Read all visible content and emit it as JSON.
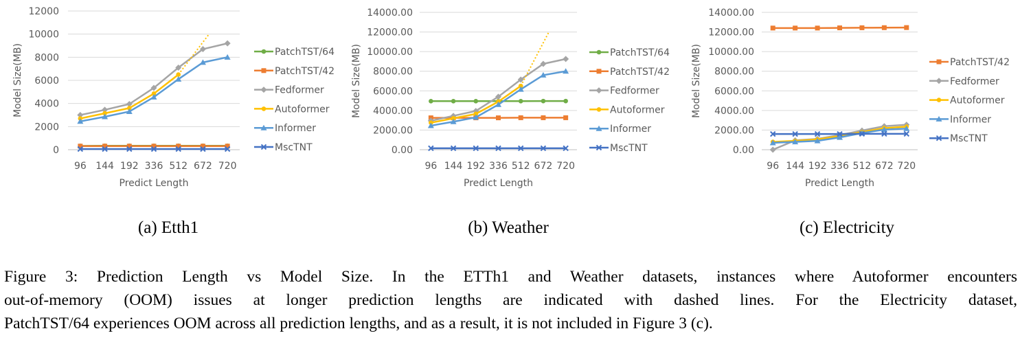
{
  "chart_data": [
    {
      "type": "line",
      "subcaption": "(a) Etth1",
      "xlabel": "Predict Length",
      "ylabel": "Model Size(MB)",
      "categories": [
        "96",
        "144",
        "192",
        "336",
        "512",
        "672",
        "720"
      ],
      "ylim": [
        0,
        12000
      ],
      "yticks": [
        "0",
        "2000",
        "4000",
        "6000",
        "8000",
        "10000",
        "12000"
      ],
      "grid": true,
      "legend": "right",
      "series": [
        {
          "name": "PatchTST/64",
          "color": "#70ad47",
          "marker": "circle",
          "values": [
            330,
            340,
            340,
            340,
            340,
            340,
            340
          ]
        },
        {
          "name": "PatchTST/42",
          "color": "#ed7d31",
          "marker": "square",
          "values": [
            310,
            310,
            310,
            310,
            310,
            310,
            310
          ]
        },
        {
          "name": "Fedformer",
          "color": "#a5a5a5",
          "marker": "diamond",
          "values": [
            3000,
            3450,
            3950,
            5350,
            7100,
            8700,
            9200
          ]
        },
        {
          "name": "Autoformer",
          "color": "#ffc000",
          "marker": "circle",
          "values": [
            2700,
            3150,
            3600,
            4850,
            6500,
            null,
            null
          ],
          "oom_dashed": [
            [
              4,
              6500
            ],
            [
              5.25,
              10000
            ]
          ]
        },
        {
          "name": "Informer",
          "color": "#5b9bd5",
          "marker": "triangle",
          "values": [
            2450,
            2850,
            3300,
            4550,
            6100,
            7550,
            8000
          ]
        },
        {
          "name": "MscTNT",
          "color": "#4472c4",
          "marker": "x",
          "values": [
            60,
            60,
            60,
            60,
            60,
            60,
            60
          ]
        }
      ]
    },
    {
      "type": "line",
      "subcaption": "(b) Weather",
      "xlabel": "Predict Length",
      "ylabel": "Model Size(MB)",
      "categories": [
        "96",
        "144",
        "192",
        "336",
        "512",
        "672",
        "720"
      ],
      "ylim": [
        0,
        14000
      ],
      "yticks": [
        "0.00",
        "2000.00",
        "4000.00",
        "6000.00",
        "8000.00",
        "10000.00",
        "12000.00",
        "14000.00"
      ],
      "grid": true,
      "legend": "right",
      "series": [
        {
          "name": "PatchTST/64",
          "color": "#70ad47",
          "marker": "circle",
          "values": [
            4950,
            4950,
            4950,
            4950,
            4950,
            4960,
            4960
          ]
        },
        {
          "name": "PatchTST/42",
          "color": "#ed7d31",
          "marker": "square",
          "values": [
            3250,
            3250,
            3250,
            3250,
            3260,
            3260,
            3260
          ]
        },
        {
          "name": "Fedformer",
          "color": "#a5a5a5",
          "marker": "diamond",
          "values": [
            2950,
            3450,
            3950,
            5400,
            7150,
            8750,
            9250
          ]
        },
        {
          "name": "Autoformer",
          "color": "#ffc000",
          "marker": "circle",
          "values": [
            2750,
            3200,
            3650,
            4900,
            6500,
            null,
            null
          ],
          "oom_dashed": [
            [
              4,
              6500
            ],
            [
              5.25,
              12000
            ]
          ]
        },
        {
          "name": "Informer",
          "color": "#5b9bd5",
          "marker": "triangle",
          "values": [
            2450,
            2850,
            3300,
            4600,
            6150,
            7600,
            8000
          ]
        },
        {
          "name": "MscTNT",
          "color": "#4472c4",
          "marker": "x",
          "values": [
            150,
            150,
            150,
            150,
            150,
            150,
            150
          ]
        }
      ]
    },
    {
      "type": "line",
      "subcaption": "(c) Electricity",
      "xlabel": "Predict Length",
      "ylabel": "Model Size(MB)",
      "categories": [
        "96",
        "144",
        "192",
        "336",
        "512",
        "672",
        "720"
      ],
      "ylim": [
        0,
        14000
      ],
      "yticks": [
        "0.00",
        "2000.00",
        "4000.00",
        "6000.00",
        "8000.00",
        "10000.00",
        "12000.00",
        "14000.00"
      ],
      "grid": true,
      "legend": "right",
      "series": [
        {
          "name": "PatchTST/42",
          "color": "#ed7d31",
          "marker": "square",
          "values": [
            12400,
            12400,
            12400,
            12420,
            12430,
            12440,
            12450
          ]
        },
        {
          "name": "Fedformer",
          "color": "#a5a5a5",
          "marker": "diamond",
          "values": [
            0,
            950,
            1100,
            1500,
            1950,
            2400,
            2550
          ]
        },
        {
          "name": "Autoformer",
          "color": "#ffc000",
          "marker": "circle",
          "values": [
            800,
            900,
            1050,
            1400,
            1800,
            2200,
            2350
          ]
        },
        {
          "name": "Informer",
          "color": "#5b9bd5",
          "marker": "triangle",
          "values": [
            700,
            800,
            900,
            1250,
            1700,
            2050,
            2150
          ]
        },
        {
          "name": "MscTNT",
          "color": "#4472c4",
          "marker": "x",
          "values": [
            1600,
            1600,
            1600,
            1600,
            1620,
            1620,
            1620
          ]
        }
      ]
    }
  ],
  "caption_lines": [
    "Figure 3: Prediction Length vs Model Size. In the ETTh1 and Weather datasets, instances where Autoformer encounters",
    "out-of-memory (OOM) issues at longer prediction lengths are indicated with dashed lines.  For the Electricity dataset,",
    "PatchTST/64 experiences OOM across all prediction lengths, and as a result, it is not included in Figure 3 (c)."
  ]
}
